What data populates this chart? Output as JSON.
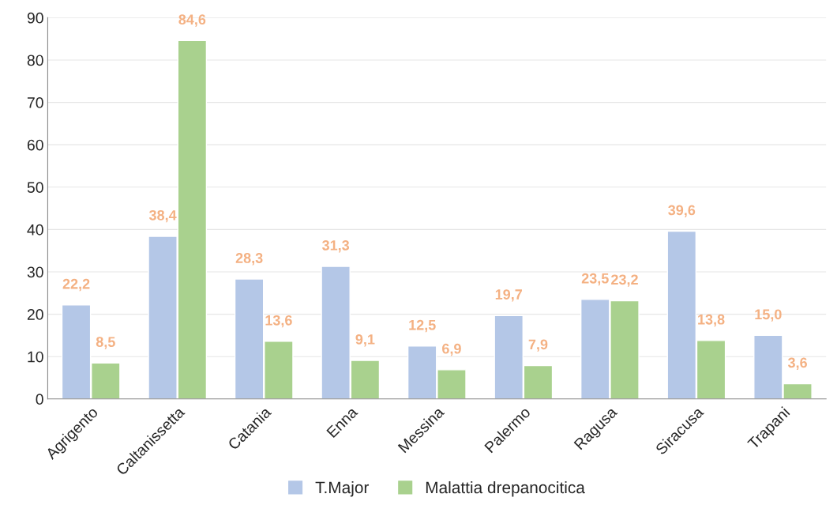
{
  "chart_data": {
    "type": "bar",
    "categories": [
      "Agrigento",
      "Caltanissetta",
      "Catania",
      "Enna",
      "Messina",
      "Palermo",
      "Ragusa",
      "Siracusa",
      "Trapani"
    ],
    "series": [
      {
        "name": "T.Major",
        "color": "#b4c7e7",
        "values": [
          22.2,
          38.4,
          28.3,
          31.3,
          12.5,
          19.7,
          23.5,
          39.6,
          15.0
        ],
        "value_labels": [
          "22,2",
          "38,4",
          "28,3",
          "31,3",
          "12,5",
          "19,7",
          "23,5",
          "39,6",
          "15,0"
        ]
      },
      {
        "name": "Malattia drepanocitica",
        "color": "#a9d18e",
        "values": [
          8.5,
          84.6,
          13.6,
          9.1,
          6.9,
          7.9,
          23.2,
          13.8,
          3.6
        ],
        "value_labels": [
          "8,5",
          "84,6",
          "13,6",
          "9,1",
          "6,9",
          "7,9",
          "23,2",
          "13,8",
          "3,6"
        ]
      }
    ],
    "ylim": [
      0,
      90
    ],
    "yticks": [
      0,
      10,
      20,
      30,
      40,
      50,
      60,
      70,
      80,
      90
    ],
    "grid": "y",
    "legend": "bottom"
  }
}
